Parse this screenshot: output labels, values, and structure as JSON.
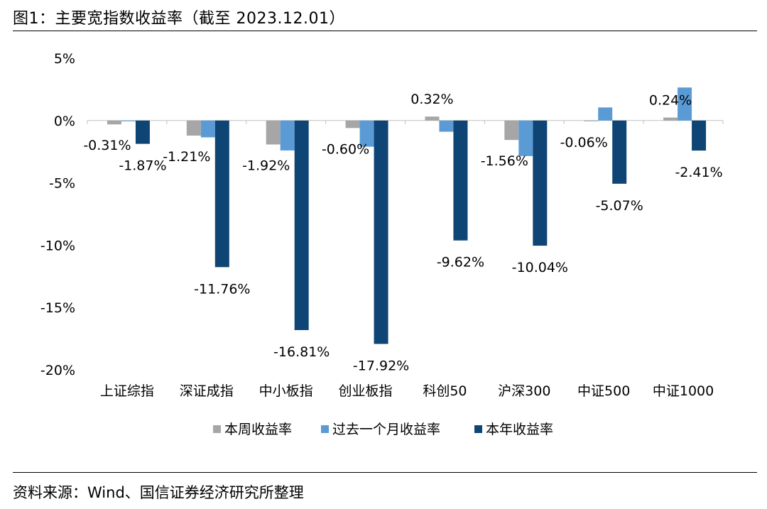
{
  "header": {
    "title": "图1：主要宽指数收益率（截至 2023.12.01）"
  },
  "footer": {
    "source": "资料来源：Wind、国信证券经济研究所整理"
  },
  "chart_data": {
    "type": "bar",
    "ylim": [
      -20,
      5
    ],
    "yticks": [
      5,
      0,
      -5,
      -10,
      -15,
      -20
    ],
    "ytick_labels": [
      "5%",
      "0%",
      "-5%",
      "-10%",
      "-15%",
      "-20%"
    ],
    "grid": false,
    "legend_position": "bottom",
    "categories": [
      "上证综指",
      "深证成指",
      "中小板指",
      "创业板指",
      "科创50",
      "沪深300",
      "中证500",
      "中证1000"
    ],
    "series": [
      {
        "name": "本周收益率",
        "color": "#A6A6A6",
        "values": [
          -0.31,
          -1.21,
          -1.92,
          -0.6,
          0.32,
          -1.56,
          -0.06,
          0.24
        ],
        "labels": [
          "-0.31%",
          "-1.21%",
          "-1.92%",
          "-0.60%",
          "0.32%",
          "-1.56%",
          "-0.06%",
          "0.24%"
        ]
      },
      {
        "name": "过去一个月收益率",
        "color": "#5B9BD5",
        "values": [
          -0.05,
          -1.35,
          -2.4,
          -2.1,
          -0.9,
          -2.85,
          1.05,
          2.65
        ],
        "labels": []
      },
      {
        "name": "本年收益率",
        "color": "#0F4574",
        "values": [
          -1.87,
          -11.76,
          -16.81,
          -17.92,
          -9.62,
          -10.04,
          -5.07,
          -2.41
        ],
        "labels": [
          "-1.87%",
          "-11.76%",
          "-16.81%",
          "-17.92%",
          "-9.62%",
          "-10.04%",
          "-5.07%",
          "-2.41%"
        ]
      }
    ]
  }
}
